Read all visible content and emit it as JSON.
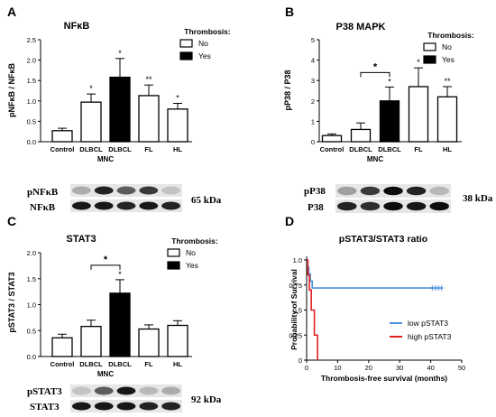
{
  "panels": {
    "A": {
      "letter": "A",
      "title": "NFκB"
    },
    "B": {
      "letter": "B",
      "title": "P38 MAPK"
    },
    "C": {
      "letter": "C",
      "title": "STAT3"
    },
    "D": {
      "letter": "D",
      "title": "pSTAT3/STAT3 ratio"
    }
  },
  "legend_common": {
    "title": "Thrombosis:",
    "no": "No",
    "yes": "Yes"
  },
  "blots": {
    "A": {
      "rows": [
        "pNFκB",
        "NFκB"
      ],
      "kda": "65 kDa"
    },
    "B": {
      "rows": [
        "pP38",
        "P38"
      ],
      "kda": "38 kDa"
    },
    "C": {
      "rows": [
        "pSTAT3",
        "STAT3"
      ],
      "kda": "92 kDa"
    }
  },
  "chart_data": [
    {
      "panel": "A",
      "type": "bar",
      "title": "NFκB",
      "ylabel": "pNFκB / NFκB",
      "xlabel_group": "MNC",
      "categories": [
        "Control",
        "DLBCL",
        "DLBCL",
        "FL",
        "HL"
      ],
      "fill": [
        "no",
        "no",
        "yes",
        "no",
        "no"
      ],
      "values": [
        0.27,
        0.97,
        1.58,
        1.13,
        0.8
      ],
      "errors": [
        0.06,
        0.2,
        0.46,
        0.26,
        0.14
      ],
      "annotations": [
        "",
        "*",
        "*",
        "**",
        "*"
      ],
      "brackets": [],
      "ylim": [
        0,
        2.5
      ],
      "yticks": [
        0.0,
        0.5,
        1.0,
        1.5,
        2.0,
        2.5
      ],
      "ytick_labels": [
        "0.0",
        "0.5",
        "1.0",
        "1.5",
        "2.0",
        "2.5"
      ]
    },
    {
      "panel": "B",
      "type": "bar",
      "title": "P38 MAPK",
      "ylabel": "pP38 / P38",
      "xlabel_group": "MNC",
      "categories": [
        "Control",
        "DLBCL",
        "DLBCL",
        "FL",
        "HL"
      ],
      "fill": [
        "no",
        "no",
        "yes",
        "no",
        "no"
      ],
      "values": [
        0.3,
        0.6,
        2.0,
        2.7,
        2.2
      ],
      "errors": [
        0.08,
        0.32,
        0.68,
        0.92,
        0.5
      ],
      "annotations": [
        "",
        "",
        "*",
        "*",
        "**"
      ],
      "brackets": [
        {
          "from": 1,
          "to": 2,
          "label": "*"
        }
      ],
      "ylim": [
        0,
        5
      ],
      "yticks": [
        0,
        1,
        2,
        3,
        4,
        5
      ],
      "ytick_labels": [
        "0",
        "1",
        "2",
        "3",
        "4",
        "5"
      ]
    },
    {
      "panel": "C",
      "type": "bar",
      "title": "STAT3",
      "ylabel": "pSTAT3 / STAT3",
      "xlabel_group": "MNC",
      "categories": [
        "Control",
        "DLBCL",
        "DLBCL",
        "FL",
        "HL"
      ],
      "fill": [
        "no",
        "no",
        "yes",
        "no",
        "no"
      ],
      "values": [
        0.36,
        0.58,
        1.22,
        0.53,
        0.6
      ],
      "errors": [
        0.07,
        0.12,
        0.26,
        0.08,
        0.09
      ],
      "annotations": [
        "",
        "",
        "*",
        "",
        ""
      ],
      "brackets": [
        {
          "from": 1,
          "to": 2,
          "label": "*"
        }
      ],
      "ylim": [
        0,
        2.0
      ],
      "yticks": [
        0.0,
        0.5,
        1.0,
        1.5,
        2.0
      ],
      "ytick_labels": [
        "0.0",
        "0.5",
        "1.0",
        "1.5",
        "2.0"
      ]
    },
    {
      "panel": "D",
      "type": "line",
      "subtype": "kaplan-meier",
      "title": "pSTAT3/STAT3 ratio",
      "xlabel": "Thrombosis-free survival (months)",
      "ylabel": "Probability of Survival",
      "xlim": [
        0,
        50
      ],
      "xticks": [
        0,
        10,
        20,
        30,
        40,
        50
      ],
      "ylim": [
        0,
        1.0
      ],
      "yticks": [
        0.0,
        0.25,
        0.5,
        0.75,
        1.0
      ],
      "ytick_labels": [
        "0",
        "0.25",
        "0.5",
        "0.75",
        "1.0"
      ],
      "legend_position": "bottom-right",
      "series": [
        {
          "name": "low pSTAT3",
          "color": "#4a90d9",
          "steps": [
            [
              0,
              1.0
            ],
            [
              0.3,
              0.93
            ],
            [
              0.7,
              0.86
            ],
            [
              1.2,
              0.79
            ],
            [
              1.8,
              0.72
            ],
            [
              44,
              0.72
            ]
          ],
          "censor": [
            40.5,
            41.5,
            42.5,
            43.5
          ]
        },
        {
          "name": "high pSTAT3",
          "color": "#e02020",
          "steps": [
            [
              0,
              1.0
            ],
            [
              0.4,
              0.85
            ],
            [
              0.9,
              0.7
            ],
            [
              1.5,
              0.5
            ],
            [
              2.5,
              0.25
            ],
            [
              3.5,
              0.0
            ]
          ],
          "censor": []
        }
      ]
    }
  ]
}
